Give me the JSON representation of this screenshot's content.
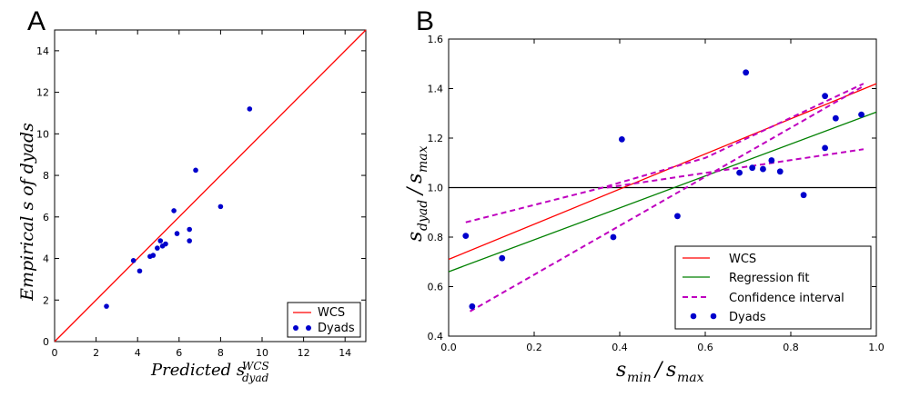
{
  "chart_data": [
    {
      "panel": "A",
      "type": "scatter",
      "xlabel": {
        "main": "Predicted s",
        "sup": "WCS",
        "sub": "dyad"
      },
      "ylabel": "Empirical s of dyads",
      "xlim": [
        0,
        15
      ],
      "ylim": [
        0,
        15
      ],
      "xticks": [
        "0",
        "2",
        "4",
        "6",
        "8",
        "10",
        "12",
        "14"
      ],
      "yticks": [
        "0",
        "2",
        "4",
        "6",
        "8",
        "10",
        "12",
        "14"
      ],
      "series": [
        {
          "name": "WCS",
          "kind": "line",
          "color": "#ff0000",
          "points": [
            [
              0,
              0
            ],
            [
              15,
              15
            ]
          ]
        },
        {
          "name": "Dyads",
          "kind": "scatter",
          "color": "#0000cc",
          "points": [
            [
              2.5,
              1.7
            ],
            [
              3.8,
              3.9
            ],
            [
              4.1,
              3.4
            ],
            [
              4.6,
              4.1
            ],
            [
              4.75,
              4.15
            ],
            [
              4.95,
              4.5
            ],
            [
              5.1,
              4.85
            ],
            [
              5.2,
              4.6
            ],
            [
              5.35,
              4.7
            ],
            [
              5.75,
              6.3
            ],
            [
              5.9,
              5.2
            ],
            [
              6.5,
              5.4
            ],
            [
              6.5,
              4.85
            ],
            [
              6.8,
              8.25
            ],
            [
              8.0,
              6.5
            ],
            [
              9.4,
              11.2
            ]
          ]
        }
      ],
      "legend": "bottom-right"
    },
    {
      "panel": "B",
      "type": "scatter",
      "xlabel": {
        "num": "min",
        "den": "max"
      },
      "ylabel": {
        "num": "dyad",
        "den": "max"
      },
      "xlim": [
        0.0,
        1.0
      ],
      "ylim": [
        0.4,
        1.6
      ],
      "xticks": [
        "0.0",
        "0.2",
        "0.4",
        "0.6",
        "0.8",
        "1.0"
      ],
      "yticks": [
        "0.4",
        "0.6",
        "0.8",
        "1.0",
        "1.2",
        "1.4",
        "1.6"
      ],
      "hline": 1.0,
      "series": [
        {
          "name": "WCS",
          "kind": "line",
          "color": "#ff0000",
          "points": [
            [
              0,
              0.71
            ],
            [
              1,
              1.42
            ]
          ]
        },
        {
          "name": "Regression fit",
          "kind": "line",
          "color": "#008000",
          "points": [
            [
              0,
              0.66
            ],
            [
              1,
              1.305
            ]
          ]
        },
        {
          "name": "Confidence interval",
          "kind": "dashed",
          "color": "#bf00bf",
          "points": [
            [
              0.05,
              0.5
            ],
            [
              0.97,
              1.41
            ]
          ]
        },
        {
          "name": "Confidence interval (upper)",
          "kind": "dashed",
          "color": "#bf00bf",
          "points": [
            [
              0.04,
              0.86
            ],
            [
              0.36,
              1.0
            ],
            [
              0.6,
              1.12
            ],
            [
              0.97,
              1.42
            ]
          ],
          "hide_legend": true
        },
        {
          "name": "Confidence interval (lower)",
          "kind": "dashed",
          "color": "#bf00bf",
          "points": [
            [
              0.37,
              1.0
            ],
            [
              0.97,
              1.155
            ]
          ],
          "hide_legend": true
        },
        {
          "name": "Dyads",
          "kind": "scatter",
          "color": "#0000cc",
          "points": [
            [
              0.04,
              0.805
            ],
            [
              0.055,
              0.52
            ],
            [
              0.125,
              0.715
            ],
            [
              0.385,
              0.8
            ],
            [
              0.405,
              1.195
            ],
            [
              0.535,
              0.885
            ],
            [
              0.68,
              1.06
            ],
            [
              0.695,
              1.465
            ],
            [
              0.71,
              1.08
            ],
            [
              0.735,
              1.075
            ],
            [
              0.755,
              1.11
            ],
            [
              0.775,
              1.065
            ],
            [
              0.83,
              0.97
            ],
            [
              0.88,
              1.16
            ],
            [
              0.88,
              1.37
            ],
            [
              0.905,
              1.28
            ],
            [
              0.965,
              1.295
            ]
          ]
        }
      ],
      "legend": "bottom-right"
    }
  ],
  "panels": {
    "a": "A",
    "b": "B"
  },
  "legend_a": {
    "wcs": "WCS",
    "dyads": "Dyads"
  },
  "legend_b": {
    "wcs": "WCS",
    "fit": "Regression fit",
    "ci": "Confidence interval",
    "dyads": "Dyads"
  },
  "symbols": {
    "s": "s"
  },
  "colors": {
    "wcs": "#ff0000",
    "fit": "#008000",
    "ci": "#bf00bf",
    "dyads": "#0000cc",
    "hline": "#000000"
  }
}
